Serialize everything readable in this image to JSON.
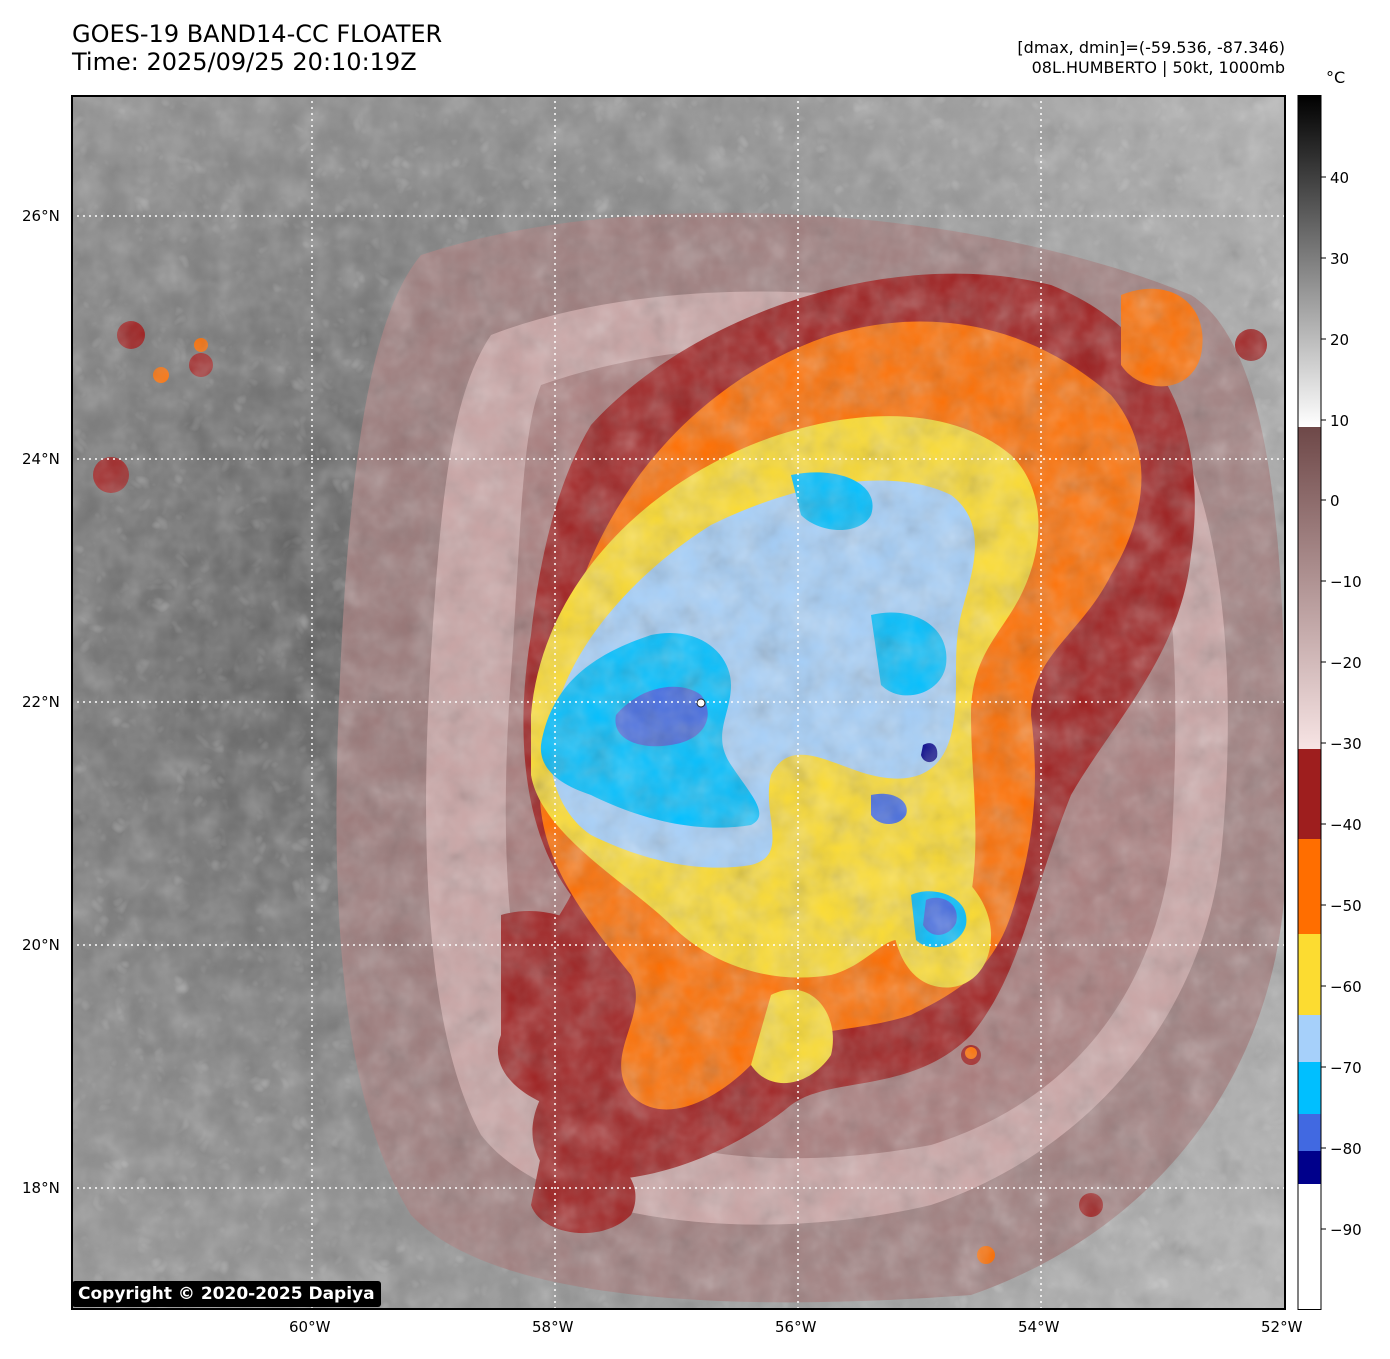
{
  "header": {
    "title_line1": "GOES-19 BAND14-CC FLOATER",
    "title_line2": "Time: 2025/09/25 20:10:19Z",
    "range_text": "[dmax, dmin]=(-59.536, -87.346)",
    "storm_text": "08L.HUMBERTO | 50kt, 1000mb"
  },
  "map": {
    "lat_labels": [
      "26°N",
      "24°N",
      "22°N",
      "20°N",
      "18°N"
    ],
    "lon_labels": [
      "60°W",
      "58°W",
      "56°W",
      "54°W",
      "52°W"
    ],
    "marker_icon": "tropical-storm-marker-icon"
  },
  "colorbar": {
    "unit": "°C",
    "ticks": [
      "40",
      "30",
      "20",
      "10",
      "0",
      "−10",
      "−20",
      "−30",
      "−40",
      "−50",
      "−60",
      "−70",
      "−80",
      "−90"
    ],
    "colors": {
      "deep_blue": "#00008b",
      "royal_blue": "#4169e1",
      "deep_sky": "#00bfff",
      "light_blue": "#a6d0fa",
      "yellow": "#fcdc31",
      "orange": "#ff6e00",
      "dark_red": "#9e1e1e",
      "mauve": "#7a5050"
    }
  },
  "copyright": "Copyright © 2020-2025 Dapiya"
}
